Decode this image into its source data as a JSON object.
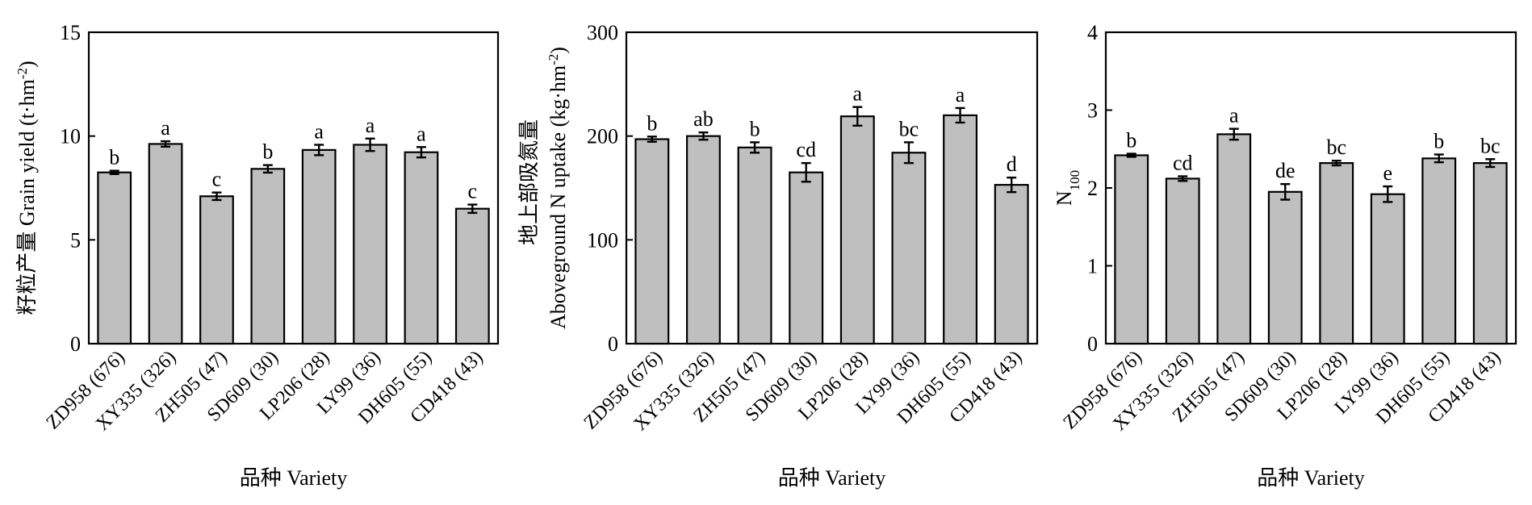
{
  "chart_data": [
    {
      "type": "bar",
      "ylabel": "籽粒产量 Grain yield (t·hm",
      "ylabel_sup": "-2",
      "ylabel_end": ")",
      "xlabel": "品种 Variety",
      "ylim": [
        0,
        15
      ],
      "yticks": [
        "0",
        "5",
        "10",
        "15"
      ],
      "categories": [
        "ZD958 (676)",
        "XY335 (326)",
        "ZH505 (47)",
        "SD609 (30)",
        "LP206 (28)",
        "LY99 (36)",
        "DH605 (55)",
        "CD418 (43)"
      ],
      "values": [
        8.25,
        9.62,
        7.1,
        8.42,
        9.33,
        9.58,
        9.22,
        6.5
      ],
      "errors": [
        0.08,
        0.13,
        0.18,
        0.18,
        0.25,
        0.3,
        0.25,
        0.2
      ],
      "letters": [
        "b",
        "a",
        "c",
        "b",
        "a",
        "a",
        "a",
        "c"
      ]
    },
    {
      "type": "bar",
      "ylabel": "地上部吸氮量",
      "ylabel2": "Aboveground N uptake (kg·hm",
      "ylabel2_sup": "-2",
      "ylabel2_end": ")",
      "xlabel": "品种 Variety",
      "ylim": [
        0,
        300
      ],
      "yticks": [
        "0",
        "100",
        "200",
        "300"
      ],
      "categories": [
        "ZD958 (676)",
        "XY335 (326)",
        "ZH505 (47)",
        "SD609 (30)",
        "LP206 (28)",
        "LY99 (36)",
        "DH605 (55)",
        "CD418 (43)"
      ],
      "values": [
        197,
        200,
        189,
        165,
        219,
        184,
        220,
        153
      ],
      "errors": [
        2.5,
        3.5,
        5,
        9,
        9,
        10,
        7,
        7
      ],
      "letters": [
        "b",
        "ab",
        "b",
        "cd",
        "a",
        "bc",
        "a",
        "d"
      ]
    },
    {
      "type": "bar",
      "ylabel": "N",
      "ylabel_sub": "100",
      "xlabel": "品种 Variety",
      "ylim": [
        0,
        4
      ],
      "yticks": [
        "0",
        "1",
        "2",
        "3",
        "4"
      ],
      "categories": [
        "ZD958 (676)",
        "XY335 (326)",
        "ZH505 (47)",
        "SD609 (30)",
        "LP206 (28)",
        "LY99 (36)",
        "DH605 (55)",
        "CD418 (43)"
      ],
      "values": [
        2.42,
        2.12,
        2.69,
        1.95,
        2.32,
        1.92,
        2.38,
        2.32
      ],
      "errors": [
        0.02,
        0.03,
        0.07,
        0.1,
        0.03,
        0.1,
        0.05,
        0.05
      ],
      "letters": [
        "b",
        "cd",
        "a",
        "de",
        "bc",
        "e",
        "b",
        "bc"
      ]
    }
  ]
}
